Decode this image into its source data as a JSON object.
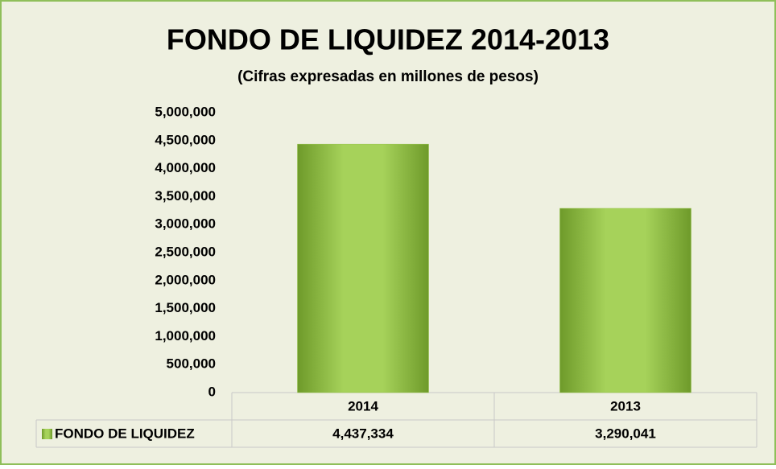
{
  "chart_data": {
    "type": "bar",
    "title": "FONDO DE LIQUIDEZ 2014-2013",
    "subtitle": "(Cifras expresadas en millones de pesos)",
    "categories": [
      "2014",
      "2013"
    ],
    "series": [
      {
        "name": "FONDO DE LIQUIDEZ",
        "color": "#92c144",
        "values": [
          4437334,
          3290041
        ],
        "value_labels": [
          "4,437,334",
          "3,290,041"
        ]
      }
    ],
    "ylim": [
      0,
      5000000
    ],
    "yticks": [
      0,
      {
        "value": 500000,
        "label": "500,000"
      },
      {
        "value": 1000000,
        "label": "1,000,000"
      },
      {
        "value": 1500000,
        "label": "1,500,000"
      },
      {
        "value": 2000000,
        "label": "2,000,000"
      },
      {
        "value": 2500000,
        "label": "2,500,000"
      },
      {
        "value": 3000000,
        "label": "3,000,000"
      },
      {
        "value": 3500000,
        "label": "3,500,000"
      },
      {
        "value": 4000000,
        "label": "4,000,000"
      },
      {
        "value": 4500000,
        "label": "4,500,000"
      },
      {
        "value": 5000000,
        "label": "5,000,000"
      }
    ],
    "grid": false
  }
}
